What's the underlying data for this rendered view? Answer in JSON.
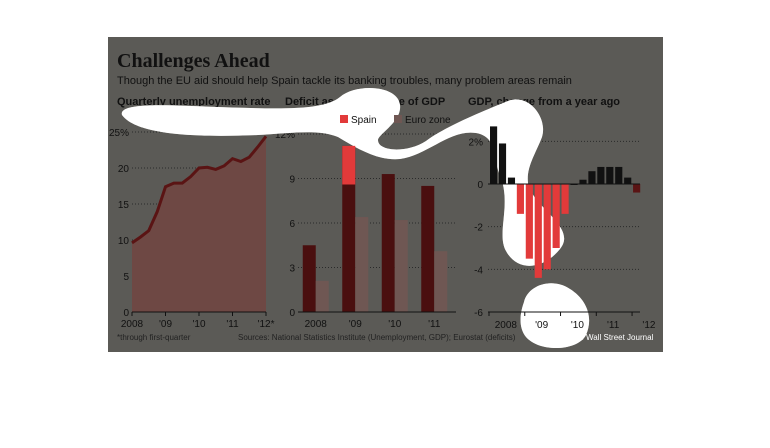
{
  "header": {
    "title": "Challenges Ahead",
    "subtitle": "Though the EU aid should help Spain tackle its banking troubles, many problem areas remain"
  },
  "footer": {
    "note": "*through first-quarter",
    "sources": "Sources: National Statistics Institute (Unemployment, GDP); Eurostat (deficits)",
    "credit": "The Wall Street Journal"
  },
  "colors": {
    "panel": "#5b5a56",
    "unemployment_fill": "#6e4844",
    "unemployment_line": "#5a1414",
    "spain": "#4a0f0f",
    "spain_highlight": "#e23a3a",
    "eurozone": "#6f5753",
    "gdp_positive": "#111111",
    "gdp_negative": "#5a1414",
    "gdp_negative_highlight": "#e23a3a",
    "highlight_blob": "#ffffff"
  },
  "chart_data": [
    {
      "type": "area",
      "title": "Quarterly unemployment rate",
      "ylim": [
        0,
        25
      ],
      "yticks": [
        "0",
        "5",
        "10",
        "15",
        "20",
        "25%"
      ],
      "xticks": [
        "2008",
        "'09",
        "'10",
        "'11",
        "'12*"
      ],
      "x": [
        2008,
        2008.25,
        2008.5,
        2008.75,
        2009,
        2009.25,
        2009.5,
        2009.75,
        2010,
        2010.25,
        2010.5,
        2010.75,
        2011,
        2011.25,
        2011.5,
        2011.75,
        2012
      ],
      "values": [
        9.6,
        10.4,
        11.3,
        13.9,
        17.4,
        17.9,
        17.9,
        18.8,
        20.0,
        20.1,
        19.8,
        20.3,
        21.3,
        20.9,
        21.5,
        22.9,
        24.4
      ],
      "series": [
        {
          "values": [
            9.6,
            10.4,
            11.3,
            13.9,
            17.4,
            17.9,
            17.9,
            18.8,
            20.0,
            20.1,
            19.8,
            20.3,
            21.3,
            20.9,
            21.5,
            22.9,
            24.4
          ]
        }
      ]
    },
    {
      "type": "bar",
      "title": "Deficit as a percentage of GDP",
      "categories": [
        "2008",
        "'09",
        "'10",
        "'11"
      ],
      "ylim": [
        0,
        12
      ],
      "yticks": [
        "0",
        "3",
        "6",
        "9",
        "12%"
      ],
      "series": [
        {
          "name": "Spain",
          "values": [
            4.5,
            11.2,
            9.3,
            8.5
          ]
        },
        {
          "name": "Euro zone",
          "values": [
            2.1,
            6.4,
            6.2,
            4.1
          ]
        }
      ],
      "legend": "top-right"
    },
    {
      "type": "bar",
      "title": "GDP, change from a year ago",
      "ylim": [
        -6,
        3
      ],
      "yticks": [
        "2%",
        "0",
        "-2",
        "-4",
        "-6"
      ],
      "xticks": [
        "2008",
        "'09",
        "'10",
        "'11",
        "'12"
      ],
      "x": [
        2008,
        2008.25,
        2008.5,
        2008.75,
        2009,
        2009.25,
        2009.5,
        2009.75,
        2010,
        2010.25,
        2010.5,
        2010.75,
        2011,
        2011.25,
        2011.5,
        2011.75,
        2012
      ],
      "values": [
        2.7,
        1.9,
        0.3,
        -1.4,
        -3.5,
        -4.4,
        -4.0,
        -3.0,
        -1.4,
        0.0,
        0.2,
        0.6,
        0.8,
        0.8,
        0.8,
        0.3,
        -0.4
      ]
    }
  ]
}
